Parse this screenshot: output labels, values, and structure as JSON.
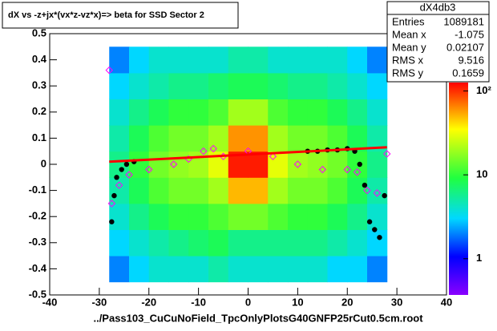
{
  "chart_data": {
    "type": "heatmap",
    "title": "dX vs  -z+jx*(vx*z-vz*x)=> beta  for SSD Sector 2",
    "x_label": "../Pass103_CuCuNoField_TpcOnlyPlotsG40GNFP25rCut0.5cm.root",
    "xlim": [
      -40,
      40
    ],
    "xticks": [
      -40,
      -30,
      -20,
      -10,
      0,
      10,
      20,
      30,
      40
    ],
    "ylim": [
      -0.5,
      0.5
    ],
    "yticks": [
      -0.5,
      -0.4,
      -0.3,
      -0.2,
      -0.1,
      0,
      0.1,
      0.2,
      0.3,
      0.4,
      0.5
    ],
    "zlim": [
      0.37,
      126
    ],
    "zlog": true,
    "zticks": [
      1,
      10,
      {
        "value": 100,
        "label": "10²"
      }
    ],
    "x_edges": [
      -28,
      -24,
      -20,
      -16,
      -12,
      -8,
      -4,
      0,
      4,
      8,
      12,
      16,
      20,
      24,
      28
    ],
    "y_edges": [
      -0.45,
      -0.35,
      -0.25,
      -0.15,
      -0.05,
      0.05,
      0.15,
      0.25,
      0.35,
      0.45
    ],
    "z": [
      [
        2,
        3,
        4,
        4,
        4,
        5,
        4,
        4,
        4,
        4,
        4,
        3,
        3,
        2
      ],
      [
        3,
        4,
        5,
        6,
        7,
        8,
        6,
        6,
        6,
        6,
        6,
        5,
        4,
        3
      ],
      [
        4,
        6,
        8,
        10,
        10,
        12,
        15,
        15,
        12,
        10,
        10,
        8,
        6,
        4
      ],
      [
        5,
        8,
        12,
        15,
        15,
        20,
        50,
        50,
        20,
        15,
        15,
        12,
        8,
        5
      ],
      [
        6,
        10,
        15,
        18,
        20,
        30,
        110,
        110,
        30,
        20,
        18,
        15,
        10,
        6
      ],
      [
        5,
        8,
        12,
        15,
        15,
        20,
        60,
        60,
        20,
        15,
        15,
        12,
        8,
        5
      ],
      [
        4,
        6,
        8,
        10,
        10,
        12,
        20,
        20,
        12,
        10,
        10,
        8,
        6,
        4
      ],
      [
        3,
        4,
        5,
        6,
        6,
        7,
        8,
        8,
        7,
        6,
        6,
        5,
        4,
        3
      ],
      [
        2,
        3,
        4,
        4,
        4,
        4,
        5,
        5,
        4,
        4,
        4,
        4,
        3,
        2
      ]
    ],
    "series": [
      {
        "kind": "filled",
        "color": "#000000",
        "x": [
          -27.5,
          -27,
          -26.5,
          -25.5,
          -24.5,
          -23,
          12,
          14,
          16,
          18,
          20,
          21.5,
          22.5,
          23.5,
          24.5,
          25.5,
          26.5,
          27.5
        ],
        "values": [
          -0.22,
          -0.12,
          -0.05,
          -0.02,
          0.0,
          0.01,
          0.05,
          0.05,
          0.055,
          0.055,
          0.06,
          0.05,
          0.0,
          -0.08,
          -0.22,
          -0.25,
          -0.28,
          -0.12
        ]
      },
      {
        "kind": "open",
        "color": "#ff00ff",
        "x": [
          -28,
          -27.5,
          -26,
          -24,
          -20,
          -15,
          -12,
          -9,
          -7,
          -5,
          0,
          5,
          10,
          15,
          20,
          22,
          24,
          26,
          28
        ],
        "values": [
          0.36,
          -0.15,
          -0.08,
          -0.04,
          -0.02,
          0.0,
          0.02,
          0.05,
          0.06,
          0.03,
          0.05,
          0.03,
          0.0,
          -0.02,
          -0.02,
          -0.03,
          -0.1,
          -0.11,
          0.04
        ]
      },
      {
        "kind": "line",
        "color": "#ff0000",
        "x": [
          -28,
          28
        ],
        "values": [
          0.01,
          0.065
        ]
      }
    ],
    "stats": {
      "title": "dX4db3",
      "rows": [
        [
          "Entries",
          "1089181"
        ],
        [
          "Mean x",
          "-1.075"
        ],
        [
          "Mean y",
          "0.02107"
        ],
        [
          "RMS x",
          "9.516"
        ],
        [
          "RMS y",
          "0.1659"
        ]
      ]
    }
  }
}
